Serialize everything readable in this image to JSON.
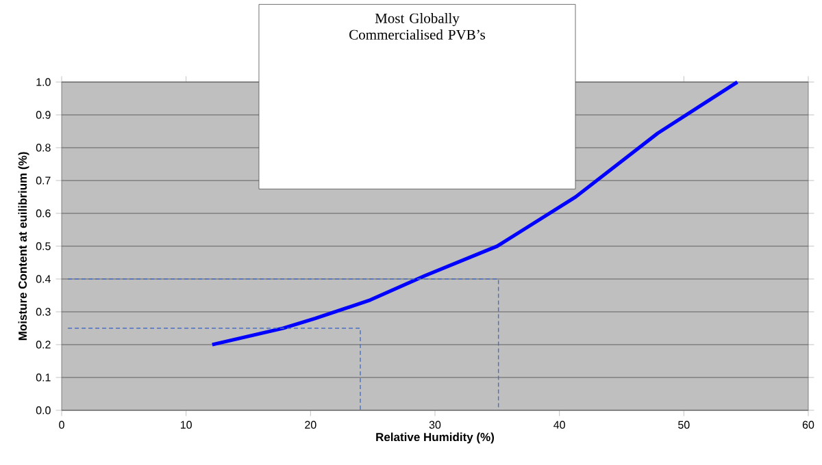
{
  "chart_data": {
    "type": "line",
    "title": "Most Globally Commercialised PVB’s",
    "xlabel": "Relative Humidity (%)",
    "ylabel": "Moisture Content at euilibrium (%)",
    "xlim": [
      0,
      60
    ],
    "xticks": [
      0,
      10,
      20,
      30,
      40,
      50,
      60
    ],
    "ylim": [
      0,
      1
    ],
    "yticks": [
      {
        "value": 0,
        "label": "0.0"
      },
      0.1,
      0.2,
      0.3,
      0.4,
      0.5,
      0.6,
      0.7,
      0.8,
      0.9,
      {
        "value": 1,
        "label": "1.0"
      }
    ],
    "grid": "y",
    "series": [
      {
        "color": "#0000ff",
        "line_style": "solid",
        "x": [
          12.1,
          17.8,
          20.4,
          24.8,
          29.2,
          35.0,
          41.3,
          47.9,
          54.3
        ],
        "values": [
          0.2,
          0.25,
          0.28,
          0.336,
          0.41,
          0.5,
          0.65,
          0.844,
          1.0
        ]
      },
      {
        "color": "#4a6fc0",
        "line_style": "dashed",
        "x": [
          0.5,
          35.1,
          35.1
        ],
        "values": [
          0.4,
          0.4,
          0
        ]
      },
      {
        "color": "#4a6fc0",
        "line_style": "dashed",
        "x": [
          0.5,
          24,
          24
        ],
        "values": [
          0.25,
          0.25,
          0
        ]
      }
    ]
  }
}
